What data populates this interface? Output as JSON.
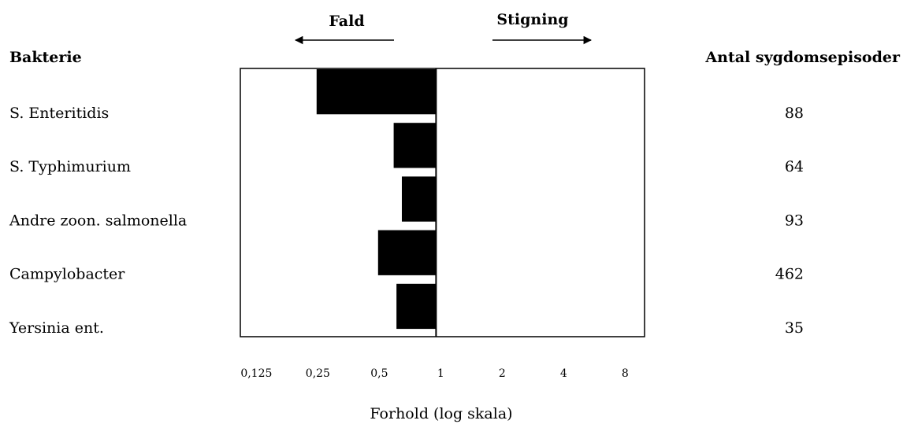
{
  "chart_data": {
    "type": "bar",
    "orientation": "horizontal",
    "log_scale": true,
    "row_header": "Bakterie",
    "count_header": "Antal sygdomsepisoder",
    "decrease_label": "Fald",
    "increase_label": "Stigning",
    "x_label": "Forhold (log skala)",
    "categories": [
      "S. Enteritidis",
      "S. Typhimurium",
      "Andre zoon. salmonella",
      "Campylobacter",
      "Yersinia ent."
    ],
    "values": [
      0.26,
      0.62,
      0.68,
      0.52,
      0.64
    ],
    "counts": [
      88,
      64,
      93,
      462,
      35
    ],
    "color": "#000000",
    "xlim": [
      0.11,
      10.5
    ],
    "xticks": [
      {
        "value": 0.125,
        "label": "0,125"
      },
      {
        "value": 0.25,
        "label": "0,25"
      },
      {
        "value": 0.5,
        "label": "0,5"
      },
      1,
      2,
      4,
      8
    ]
  }
}
